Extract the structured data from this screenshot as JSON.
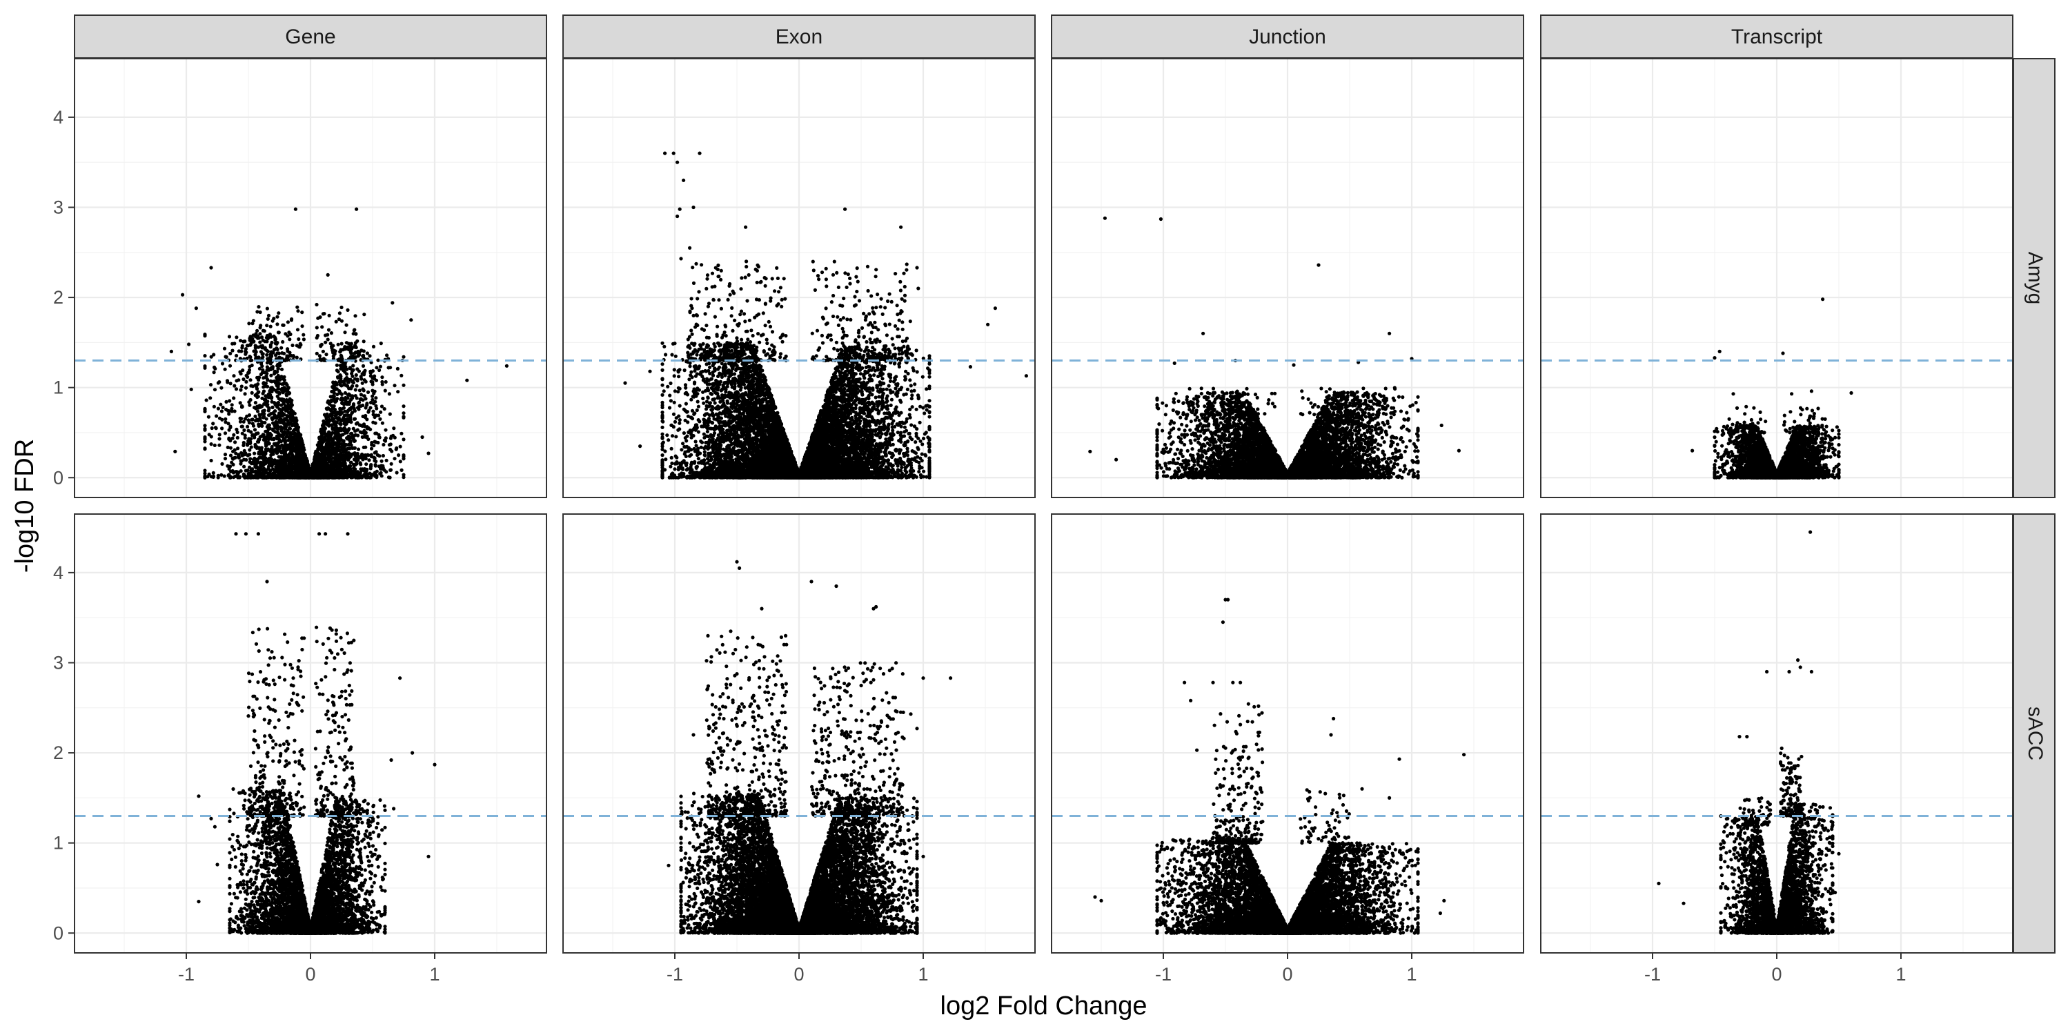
{
  "chart_data": {
    "type": "scatter",
    "xlabel": "log2 Fold Change",
    "ylabel": "-log10 FDR",
    "xlim": [
      -1.9,
      1.9
    ],
    "ylim": [
      -0.22,
      4.65
    ],
    "x_ticks": [
      -1,
      0,
      1
    ],
    "x_tick_labels": [
      "-1",
      "0",
      "1"
    ],
    "y_ticks": [
      0,
      1,
      2,
      3,
      4
    ],
    "y_tick_labels": [
      "0",
      "1",
      "2",
      "3",
      "4"
    ],
    "grid": true,
    "reference_line": {
      "y": 1.3,
      "style": "dashed",
      "color": "#7fb2d8"
    },
    "columns": [
      "Gene",
      "Exon",
      "Junction",
      "Transcript"
    ],
    "rows": [
      "Amyg",
      "sACC"
    ],
    "colors": {
      "points": "#000000",
      "strip_fill": "#d9d9d9",
      "grid": "#ebebeb",
      "panel_border": "#333333"
    },
    "panels": [
      {
        "row": "Amyg",
        "column": "Gene",
        "points": [
          [
            -0.12,
            2.98
          ],
          [
            0.37,
            2.98
          ],
          [
            -0.8,
            2.33
          ],
          [
            0.14,
            2.25
          ],
          [
            -1.03,
            2.03
          ],
          [
            -0.92,
            1.88
          ],
          [
            -0.1,
            1.85
          ],
          [
            0.05,
            1.92
          ],
          [
            0.3,
            1.86
          ],
          [
            0.66,
            1.94
          ],
          [
            0.81,
            1.75
          ],
          [
            -1.12,
            1.4
          ],
          [
            -0.98,
            1.48
          ],
          [
            1.26,
            1.08
          ],
          [
            1.58,
            1.24
          ],
          [
            -1.09,
            0.29
          ],
          [
            -0.85,
            0.53
          ],
          [
            0.9,
            0.45
          ],
          [
            0.95,
            0.27
          ],
          [
            -0.96,
            0.98
          ]
        ],
        "clouds": [
          {
            "side": "left",
            "count": 1900,
            "max_abs_x": 0.85,
            "max_y": 1.6,
            "hi_count": 110,
            "hi_y": [
              1.3,
              1.9
            ],
            "hi_x": [
              -0.5,
              -0.05
            ]
          },
          {
            "side": "right",
            "count": 1600,
            "max_abs_x": 0.75,
            "max_y": 1.5,
            "hi_count": 90,
            "hi_y": [
              1.3,
              1.9
            ],
            "hi_x": [
              0.05,
              0.45
            ]
          }
        ]
      },
      {
        "row": "Amyg",
        "column": "Exon",
        "points": [
          [
            -1.08,
            3.6
          ],
          [
            -1.01,
            3.6
          ],
          [
            -0.98,
            3.5
          ],
          [
            -0.8,
            3.6
          ],
          [
            -0.93,
            3.3
          ],
          [
            -0.96,
            2.98
          ],
          [
            -0.98,
            2.9
          ],
          [
            -0.85,
            3.0
          ],
          [
            -0.88,
            2.55
          ],
          [
            -0.43,
            2.78
          ],
          [
            0.37,
            2.98
          ],
          [
            0.82,
            2.78
          ],
          [
            -0.95,
            2.43
          ],
          [
            1.58,
            1.88
          ],
          [
            1.52,
            1.7
          ],
          [
            1.83,
            1.13
          ],
          [
            1.38,
            1.23
          ],
          [
            -1.2,
            1.18
          ],
          [
            -1.4,
            1.05
          ],
          [
            -1.28,
            0.35
          ],
          [
            0.95,
            2.33
          ],
          [
            0.96,
            2.1
          ]
        ],
        "clouds": [
          {
            "side": "left",
            "count": 5200,
            "max_abs_x": 1.1,
            "max_y": 1.5,
            "hi_count": 260,
            "hi_y": [
              1.3,
              2.4
            ],
            "hi_x": [
              -0.9,
              -0.1
            ]
          },
          {
            "side": "right",
            "count": 4800,
            "max_abs_x": 1.05,
            "max_y": 1.45,
            "hi_count": 230,
            "hi_y": [
              1.3,
              2.4
            ],
            "hi_x": [
              0.1,
              0.9
            ]
          }
        ]
      },
      {
        "row": "Amyg",
        "column": "Junction",
        "points": [
          [
            -1.47,
            2.88
          ],
          [
            -1.02,
            2.87
          ],
          [
            0.25,
            2.36
          ],
          [
            -0.68,
            1.6
          ],
          [
            0.82,
            1.6
          ],
          [
            -0.42,
            1.3
          ],
          [
            0.05,
            1.25
          ],
          [
            0.57,
            1.28
          ],
          [
            1.0,
            1.32
          ],
          [
            -0.91,
            1.27
          ],
          [
            1.24,
            0.58
          ],
          [
            1.38,
            0.3
          ],
          [
            -1.59,
            0.29
          ],
          [
            -1.38,
            0.2
          ]
        ],
        "clouds": [
          {
            "side": "left",
            "count": 3300,
            "max_abs_x": 1.05,
            "max_y": 0.95,
            "hi_count": 60,
            "hi_y": [
              0.7,
              1.0
            ],
            "hi_x": [
              -0.9,
              -0.1
            ]
          },
          {
            "side": "right",
            "count": 3300,
            "max_abs_x": 1.05,
            "max_y": 0.95,
            "hi_count": 60,
            "hi_y": [
              0.7,
              1.0
            ],
            "hi_x": [
              0.1,
              0.9
            ]
          }
        ]
      },
      {
        "row": "Amyg",
        "column": "Transcript",
        "points": [
          [
            0.37,
            1.98
          ],
          [
            -0.46,
            1.4
          ],
          [
            -0.5,
            1.33
          ],
          [
            0.05,
            1.38
          ],
          [
            0.6,
            0.94
          ],
          [
            -0.35,
            0.93
          ],
          [
            0.12,
            0.93
          ],
          [
            0.28,
            0.96
          ],
          [
            -0.68,
            0.3
          ],
          [
            0.28,
            0.22
          ]
        ],
        "clouds": [
          {
            "side": "left",
            "count": 1700,
            "max_abs_x": 0.5,
            "max_y": 0.58,
            "hi_count": 40,
            "hi_y": [
              0.5,
              0.8
            ],
            "hi_x": [
              -0.4,
              -0.05
            ]
          },
          {
            "side": "right",
            "count": 1700,
            "max_abs_x": 0.5,
            "max_y": 0.58,
            "hi_count": 40,
            "hi_y": [
              0.5,
              0.8
            ],
            "hi_x": [
              0.05,
              0.4
            ]
          }
        ]
      },
      {
        "row": "sACC",
        "column": "Gene",
        "points": [
          [
            -0.6,
            4.43
          ],
          [
            -0.52,
            4.43
          ],
          [
            -0.42,
            4.43
          ],
          [
            0.07,
            4.43
          ],
          [
            0.12,
            4.43
          ],
          [
            0.3,
            4.43
          ],
          [
            -0.35,
            3.9
          ],
          [
            -0.9,
            1.52
          ],
          [
            -0.8,
            1.27
          ],
          [
            -0.77,
            1.18
          ],
          [
            -0.75,
            0.76
          ],
          [
            0.72,
            2.83
          ],
          [
            0.82,
            2.0
          ],
          [
            1.0,
            1.87
          ],
          [
            0.65,
            1.92
          ],
          [
            0.67,
            1.38
          ],
          [
            0.95,
            0.85
          ],
          [
            -0.9,
            0.35
          ]
        ],
        "clouds": [
          {
            "side": "left",
            "count": 2600,
            "max_abs_x": 0.65,
            "max_y": 1.6,
            "hi_count": 260,
            "hi_y": [
              1.3,
              3.4
            ],
            "hi_x": [
              -0.5,
              -0.05
            ]
          },
          {
            "side": "right",
            "count": 2400,
            "max_abs_x": 0.6,
            "max_y": 1.5,
            "hi_count": 220,
            "hi_y": [
              1.3,
              3.4
            ],
            "hi_x": [
              0.04,
              0.35
            ]
          }
        ]
      },
      {
        "row": "sACC",
        "column": "Exon",
        "points": [
          [
            -0.5,
            4.12
          ],
          [
            -0.48,
            4.05
          ],
          [
            0.1,
            3.9
          ],
          [
            0.3,
            3.85
          ],
          [
            0.62,
            3.62
          ],
          [
            0.6,
            3.6
          ],
          [
            1.0,
            2.83
          ],
          [
            1.22,
            2.83
          ],
          [
            0.9,
            2.43
          ],
          [
            0.95,
            2.27
          ],
          [
            -0.85,
            2.2
          ],
          [
            -0.7,
            1.82
          ],
          [
            -0.88,
            1.0
          ],
          [
            -1.05,
            0.75
          ],
          [
            -0.88,
            0.57
          ],
          [
            -0.88,
            0.3
          ],
          [
            -0.3,
            3.6
          ],
          [
            -0.55,
            3.35
          ],
          [
            0.88,
            0.33
          ],
          [
            1.0,
            0.85
          ]
        ],
        "clouds": [
          {
            "side": "left",
            "count": 5600,
            "max_abs_x": 0.95,
            "max_y": 1.55,
            "hi_count": 420,
            "hi_y": [
              1.3,
              3.3
            ],
            "hi_x": [
              -0.75,
              -0.1
            ]
          },
          {
            "side": "right",
            "count": 5400,
            "max_abs_x": 0.95,
            "max_y": 1.5,
            "hi_count": 380,
            "hi_y": [
              1.3,
              3.0
            ],
            "hi_x": [
              0.1,
              0.85
            ]
          }
        ]
      },
      {
        "row": "sACC",
        "column": "Junction",
        "points": [
          [
            -0.5,
            3.7
          ],
          [
            -0.48,
            3.7
          ],
          [
            -0.52,
            3.45
          ],
          [
            -0.6,
            2.78
          ],
          [
            -0.38,
            2.78
          ],
          [
            -0.44,
            2.78
          ],
          [
            -0.83,
            2.78
          ],
          [
            -0.78,
            2.58
          ],
          [
            -0.73,
            2.03
          ],
          [
            0.37,
            2.38
          ],
          [
            0.35,
            2.2
          ],
          [
            0.6,
            1.6
          ],
          [
            0.9,
            1.93
          ],
          [
            1.42,
            1.98
          ],
          [
            0.82,
            1.5
          ],
          [
            -0.85,
            1.0
          ],
          [
            -1.55,
            0.4
          ],
          [
            -1.5,
            0.36
          ],
          [
            1.26,
            0.36
          ],
          [
            1.23,
            0.22
          ]
        ],
        "clouds": [
          {
            "side": "left",
            "count": 3800,
            "max_abs_x": 1.05,
            "max_y": 1.05,
            "hi_count": 220,
            "hi_y": [
              1.0,
              2.6
            ],
            "hi_x": [
              -0.6,
              -0.2
            ]
          },
          {
            "side": "right",
            "count": 3600,
            "max_abs_x": 1.05,
            "max_y": 1.0,
            "hi_count": 60,
            "hi_y": [
              1.0,
              1.6
            ],
            "hi_x": [
              0.1,
              0.5
            ]
          }
        ]
      },
      {
        "row": "sACC",
        "column": "Transcript",
        "points": [
          [
            0.27,
            4.45
          ],
          [
            0.17,
            3.03
          ],
          [
            0.19,
            2.95
          ],
          [
            -0.08,
            2.9
          ],
          [
            0.28,
            2.9
          ],
          [
            0.1,
            2.9
          ],
          [
            -0.3,
            2.18
          ],
          [
            -0.24,
            2.18
          ],
          [
            -0.95,
            0.55
          ],
          [
            -0.75,
            0.33
          ],
          [
            0.5,
            0.88
          ],
          [
            0.47,
            0.45
          ],
          [
            0.04,
            2.05
          ]
        ],
        "clouds": [
          {
            "side": "left",
            "count": 1500,
            "max_abs_x": 0.45,
            "max_y": 1.3,
            "hi_count": 60,
            "hi_y": [
              1.2,
              1.5
            ],
            "hi_x": [
              -0.3,
              -0.05
            ]
          },
          {
            "side": "right",
            "count": 1900,
            "max_abs_x": 0.45,
            "max_y": 1.45,
            "hi_count": 140,
            "hi_y": [
              1.3,
              2.0
            ],
            "hi_x": [
              0.03,
              0.2
            ]
          }
        ]
      }
    ]
  }
}
